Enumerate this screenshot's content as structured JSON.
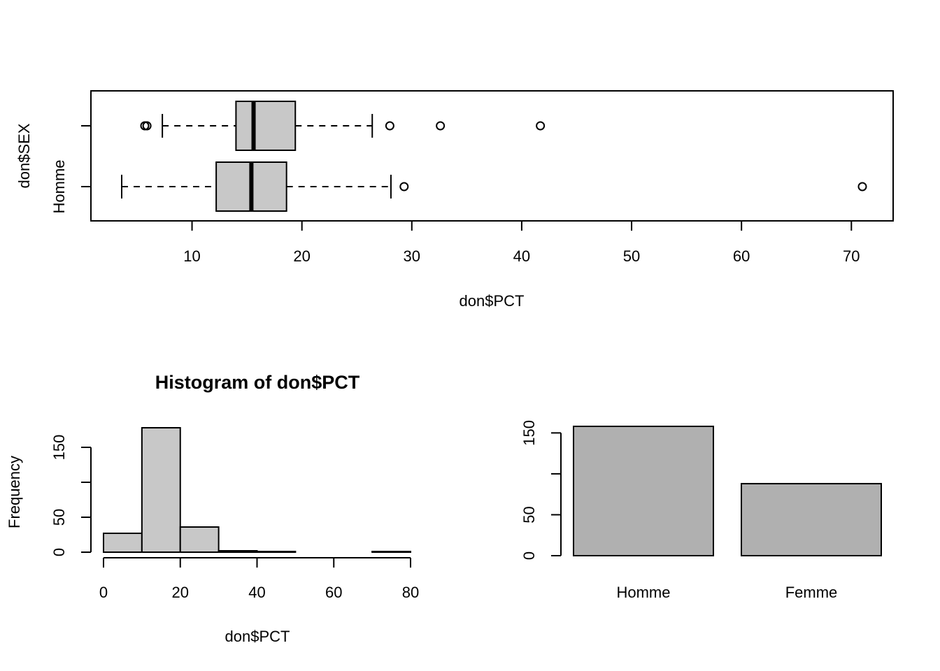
{
  "chart_data": [
    {
      "type": "boxplot",
      "orientation": "horizontal",
      "xlabel": "don$PCT",
      "ylabel": "don$SEX",
      "xlim": [
        0.8,
        73.8
      ],
      "x_ticks": [
        10,
        20,
        30,
        40,
        50,
        60,
        70
      ],
      "x_tick_labels": [
        "10",
        "20",
        "30",
        "40",
        "50",
        "60",
        "70"
      ],
      "grid": false,
      "groups": [
        {
          "name": "Homme",
          "whisker_low": 3.6,
          "q1": 12.2,
          "median": 15.4,
          "q3": 18.6,
          "whisker_high": 28.1,
          "outliers": [
            29.3,
            71.0
          ]
        },
        {
          "name": "",
          "whisker_low": 7.3,
          "q1": 14.0,
          "median": 15.6,
          "q3": 19.4,
          "whisker_high": 26.4,
          "outliers": [
            5.7,
            5.9,
            28.0,
            32.6,
            41.7
          ]
        }
      ]
    },
    {
      "type": "histogram",
      "title": "Histogram of don$PCT",
      "xlabel": "don$PCT",
      "ylabel": "Frequency",
      "bin_edges": [
        0,
        10,
        20,
        30,
        40,
        50,
        60,
        70,
        80
      ],
      "counts": [
        27,
        178,
        36,
        2,
        1,
        0,
        0,
        1
      ],
      "xlim": [
        0,
        80
      ],
      "ylim": [
        0,
        180
      ],
      "x_ticks": [
        0,
        20,
        40,
        60,
        80
      ],
      "x_tick_labels": [
        "0",
        "20",
        "40",
        "60",
        "80"
      ],
      "y_ticks": [
        0,
        50,
        100,
        150
      ],
      "y_tick_labels": [
        "0",
        "50",
        "",
        "150"
      ],
      "grid": false
    },
    {
      "type": "bar",
      "categories": [
        "Homme",
        "Femme"
      ],
      "values": [
        158,
        88
      ],
      "ylim": [
        0,
        158
      ],
      "y_ticks": [
        0,
        50,
        100,
        150
      ],
      "y_tick_labels": [
        "0",
        "50",
        "",
        "150"
      ],
      "xlabel": "",
      "ylabel": "",
      "grid": false
    }
  ],
  "colors": {
    "box_fill": "#c8c8c8",
    "hist_fill": "#c8c8c8",
    "bar_fill": "#b0b0b0",
    "line": "#000000"
  }
}
